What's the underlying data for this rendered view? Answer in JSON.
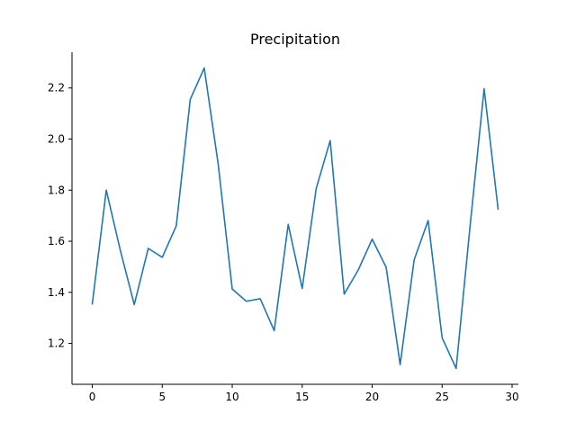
{
  "chart_data": {
    "type": "line",
    "title": "Precipitation",
    "xlabel": "",
    "ylabel": "",
    "xlim": [
      -1.45,
      30.45
    ],
    "ylim": [
      1.04,
      2.34
    ],
    "x_ticks": [
      0,
      5,
      10,
      15,
      20,
      25,
      30
    ],
    "y_ticks": [
      1.2,
      1.4,
      1.6,
      1.8,
      2.0,
      2.2
    ],
    "y_tick_labels": [
      "1.2",
      "1.4",
      "1.6",
      "1.8",
      "2.0",
      "2.2"
    ],
    "grid": false,
    "spines": [
      "left",
      "bottom"
    ],
    "colors": {
      "line": "#1f77b4"
    },
    "series": [
      {
        "x": [
          0,
          1,
          2,
          3,
          4,
          5,
          6,
          7,
          8,
          9,
          10,
          11,
          12,
          13,
          14,
          15,
          16,
          17,
          18,
          19,
          20,
          21,
          22,
          23,
          24,
          25,
          26,
          27,
          28,
          29
        ],
        "values": [
          1.355,
          1.8,
          1.565,
          1.352,
          1.572,
          1.537,
          1.66,
          2.155,
          2.278,
          1.901,
          1.413,
          1.365,
          1.375,
          1.25,
          1.666,
          1.415,
          1.806,
          1.994,
          1.393,
          1.487,
          1.608,
          1.498,
          1.117,
          1.527,
          1.681,
          1.222,
          1.102,
          1.661,
          2.197,
          1.726
        ]
      }
    ]
  }
}
